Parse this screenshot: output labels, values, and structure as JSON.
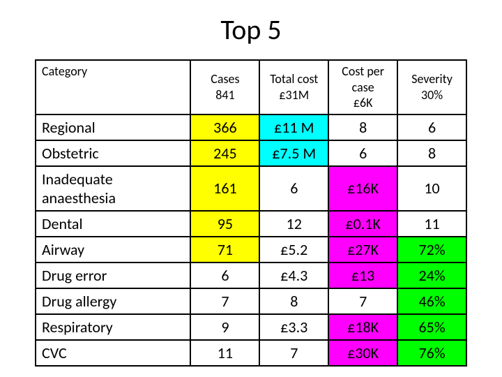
{
  "title": "Top 5",
  "table": {
    "colors": {
      "yellow": "#ffff00",
      "cyan": "#00ffff",
      "magenta": "#ff00ff",
      "green": "#00ff00",
      "border": "#000000",
      "background": "#ffffff"
    },
    "header": {
      "category": {
        "l1": "Category",
        "l2": ""
      },
      "cases": {
        "l1": "Cases",
        "l2": "841"
      },
      "total_cost": {
        "l1": "Total cost",
        "l2": "£31M"
      },
      "cost_per_case": {
        "l1": "Cost per case",
        "l2": "£6K"
      },
      "severity": {
        "l1": "Severity",
        "l2": "30%"
      }
    },
    "rows": [
      {
        "category": "Regional",
        "cases": "366",
        "total_cost": "£11 M",
        "cost_per_case": "8",
        "severity": "6",
        "hl": {
          "cases": "yellow",
          "total_cost": "cyan"
        }
      },
      {
        "category": "Obstetric",
        "cases": "245",
        "total_cost": "£7.5 M",
        "cost_per_case": "6",
        "severity": "8",
        "hl": {
          "cases": "yellow",
          "total_cost": "cyan"
        }
      },
      {
        "category": "Inadequate anaesthesia",
        "cases": "161",
        "total_cost": "6",
        "cost_per_case": "£16K",
        "severity": "10",
        "hl": {
          "cases": "yellow",
          "cost_per_case": "magenta"
        }
      },
      {
        "category": "Dental",
        "cases": "95",
        "total_cost": "12",
        "cost_per_case": "£0.1K",
        "severity": "11",
        "hl": {
          "cases": "yellow",
          "cost_per_case": "magenta"
        }
      },
      {
        "category": "Airway",
        "cases": "71",
        "total_cost": "£5.2",
        "cost_per_case": "£27K",
        "severity": "72%",
        "hl": {
          "cases": "yellow",
          "cost_per_case": "magenta",
          "severity": "green"
        }
      },
      {
        "category": "Drug error",
        "cases": "6",
        "total_cost": "£4.3",
        "cost_per_case": "£13",
        "severity": "24%",
        "hl": {
          "cost_per_case": "magenta",
          "severity": "green"
        }
      },
      {
        "category": "Drug allergy",
        "cases": "7",
        "total_cost": "8",
        "cost_per_case": "7",
        "severity": "46%",
        "hl": {
          "severity": "green"
        }
      },
      {
        "category": "Respiratory",
        "cases": "9",
        "total_cost": "£3.3",
        "cost_per_case": "£18K",
        "severity": "65%",
        "hl": {
          "cost_per_case": "magenta",
          "severity": "green"
        }
      },
      {
        "category": "CVC",
        "cases": "11",
        "total_cost": "7",
        "cost_per_case": "£30K",
        "severity": "76%",
        "hl": {
          "cost_per_case": "magenta",
          "severity": "green"
        }
      }
    ]
  }
}
